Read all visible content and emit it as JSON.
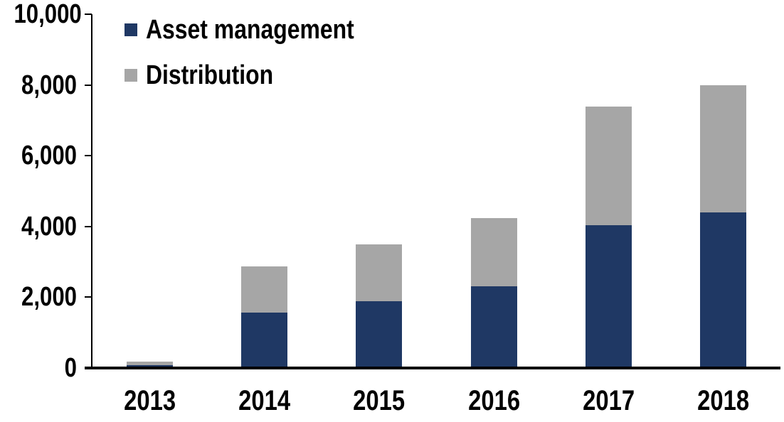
{
  "chart_data": {
    "type": "bar",
    "stacked": true,
    "title": "",
    "xlabel": "",
    "ylabel": "",
    "categories": [
      "2013",
      "2014",
      "2015",
      "2016",
      "2017",
      "2018"
    ],
    "series": [
      {
        "name": "Asset management",
        "color": "#1F3864",
        "values": [
          80,
          1560,
          1890,
          2300,
          4030,
          4400
        ]
      },
      {
        "name": "Distribution",
        "color": "#A6A6A6",
        "values": [
          100,
          1310,
          1610,
          1940,
          3350,
          3600
        ]
      }
    ],
    "totals": [
      180,
      2870,
      3500,
      4240,
      7380,
      8000
    ],
    "ylim": [
      0,
      10000
    ],
    "ytick_interval": 2000,
    "ytick_labels": [
      "0",
      "2,000",
      "4,000",
      "6,000",
      "8,000",
      "10,000"
    ],
    "grid": false,
    "legend_position": "top-left",
    "axis_color": "#000000",
    "background_color": "#FFFFFF"
  }
}
